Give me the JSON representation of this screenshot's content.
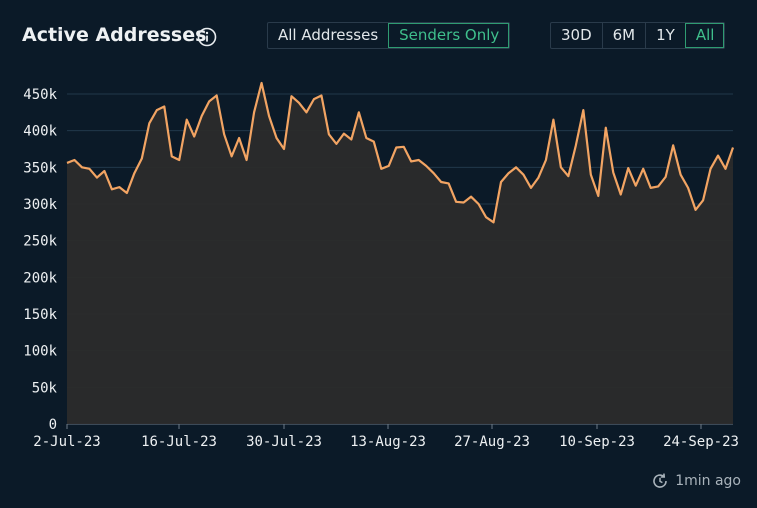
{
  "header": {
    "title": "Active Addresses",
    "info_icon": "info-icon",
    "mode_buttons": [
      {
        "label": "All Addresses",
        "active": false
      },
      {
        "label": "Senders Only",
        "active": true
      }
    ],
    "range_buttons": [
      {
        "label": "30D",
        "active": false
      },
      {
        "label": "6M",
        "active": false
      },
      {
        "label": "1Y",
        "active": false
      },
      {
        "label": "All",
        "active": true
      }
    ]
  },
  "footer": {
    "refresh_icon": "refresh-clock-icon",
    "updated_text": "1min ago"
  },
  "colors": {
    "background": "#0b1a28",
    "line": "#f2a463",
    "area": "#2b2b2b",
    "grid": "#22384a",
    "accent": "#3fbf8c"
  },
  "chart_data": {
    "type": "area",
    "title": "Active Addresses",
    "xlabel": "",
    "ylabel": "",
    "ylim": [
      0,
      450000
    ],
    "yticks": [
      "0",
      "50k",
      "100k",
      "150k",
      "200k",
      "250k",
      "300k",
      "350k",
      "400k",
      "450k"
    ],
    "ytick_values": [
      0,
      50000,
      100000,
      150000,
      200000,
      250000,
      300000,
      350000,
      400000,
      450000
    ],
    "xtick_labels": [
      "2-Jul-23",
      "16-Jul-23",
      "30-Jul-23",
      "13-Aug-23",
      "27-Aug-23",
      "10-Sep-23",
      "24-Sep-23"
    ],
    "grid": true,
    "legend": "none",
    "x_start": "2023-07-02",
    "x_end": "2023-09-26",
    "series": [
      {
        "values": [
          356000,
          360000,
          350000,
          348000,
          336000,
          345000,
          320000,
          323000,
          315000,
          342000,
          362000,
          410000,
          428000,
          433000,
          365000,
          360000,
          415000,
          392000,
          420000,
          440000,
          448000,
          395000,
          365000,
          390000,
          360000,
          425000,
          465000,
          420000,
          390000,
          375000,
          447000,
          438000,
          425000,
          443000,
          448000,
          395000,
          382000,
          396000,
          388000,
          425000,
          390000,
          385000,
          348000,
          352000,
          377000,
          378000,
          358000,
          360000,
          352000,
          342000,
          330000,
          328000,
          303000,
          302000,
          310000,
          300000,
          282000,
          275000,
          330000,
          342000,
          350000,
          340000,
          322000,
          336000,
          360000,
          415000,
          350000,
          338000,
          380000,
          428000,
          340000,
          311000,
          404000,
          343000,
          313000,
          349000,
          325000,
          348000,
          322000,
          324000,
          337000,
          380000,
          340000,
          322000,
          292000,
          305000,
          348000,
          366000,
          348000,
          377000
        ]
      }
    ]
  }
}
